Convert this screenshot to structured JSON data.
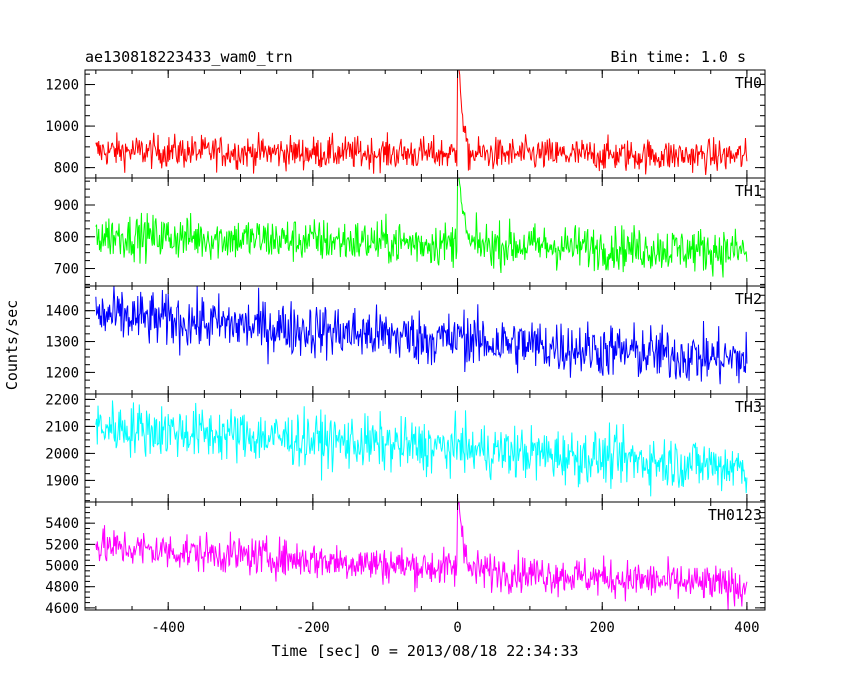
{
  "chart_data": {
    "type": "line",
    "title": "ae130818223433_wam0_trn",
    "subtitle": "Bin time: 1.0 s",
    "xlabel": "Time [sec] 0 = 2013/08/18 22:34:33",
    "ylabel": "Counts/sec",
    "xlim": [
      -515,
      425
    ],
    "x_range": [
      -500,
      400
    ],
    "xticks": [
      -400,
      -200,
      0,
      200,
      400
    ],
    "grid": false,
    "panels": [
      {
        "name": "TH0",
        "color": "#ff0000",
        "ylim": [
          750,
          1270
        ],
        "yticks": [
          800,
          1000,
          1200
        ],
        "baseline_start": 880,
        "baseline_end": 855,
        "noise": 40,
        "burst_peak": 1270,
        "burst_level": 1050
      },
      {
        "name": "TH1",
        "color": "#00ff00",
        "ylim": [
          645,
          985
        ],
        "yticks": [
          700,
          800,
          900
        ],
        "baseline_start": 805,
        "baseline_end": 755,
        "noise": 35,
        "burst_peak": 985,
        "burst_level": 880
      },
      {
        "name": "TH2",
        "color": "#0000ff",
        "ylim": [
          1130,
          1480
        ],
        "yticks": [
          1200,
          1300,
          1400
        ],
        "baseline_start": 1385,
        "baseline_end": 1240,
        "noise": 45,
        "burst_peak": 1360,
        "burst_level": 1320
      },
      {
        "name": "TH3",
        "color": "#00ffff",
        "ylim": [
          1820,
          2220
        ],
        "yticks": [
          1900,
          2000,
          2100,
          2200
        ],
        "baseline_start": 2100,
        "baseline_end": 1950,
        "noise": 50,
        "burst_peak": 2050,
        "burst_level": 2010
      },
      {
        "name": "TH0123",
        "color": "#ff00ff",
        "ylim": [
          4580,
          5600
        ],
        "yticks": [
          4600,
          4800,
          5000,
          5200,
          5400
        ],
        "baseline_start": 5180,
        "baseline_end": 4800,
        "noise": 90,
        "burst_peak": 5600,
        "burst_level": 5350
      }
    ]
  }
}
